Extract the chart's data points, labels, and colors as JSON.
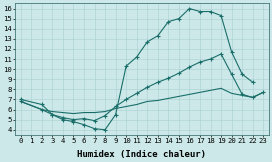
{
  "bg_color": "#cce8e8",
  "line_color": "#1a6e6a",
  "curve1_x": [
    0,
    2,
    3,
    4,
    5,
    6,
    7,
    8,
    9,
    10,
    11,
    12,
    13,
    14,
    15,
    16,
    17,
    18,
    19,
    20,
    21,
    22
  ],
  "curve1_y": [
    7,
    6.5,
    5.5,
    5.0,
    4.8,
    4.5,
    4.1,
    4.0,
    5.5,
    10.3,
    11.2,
    12.7,
    13.3,
    14.7,
    15.0,
    16.0,
    15.7,
    15.7,
    15.3,
    11.7,
    9.5,
    8.7
  ],
  "curve2_x": [
    0,
    2,
    3,
    4,
    5,
    6,
    7,
    8,
    9,
    10,
    11,
    12,
    13,
    14,
    15,
    16,
    17,
    18,
    19,
    20,
    21,
    22,
    23
  ],
  "curve2_y": [
    6.8,
    6.0,
    5.5,
    5.2,
    5.0,
    5.1,
    4.9,
    5.4,
    6.3,
    7.0,
    7.6,
    8.2,
    8.7,
    9.1,
    9.6,
    10.2,
    10.7,
    11.0,
    11.5,
    9.5,
    7.5,
    7.2,
    7.7
  ],
  "curve3_x": [
    0,
    2,
    3,
    4,
    5,
    6,
    7,
    8,
    9,
    10,
    11,
    12,
    13,
    14,
    15,
    16,
    17,
    18,
    19,
    20,
    21,
    22,
    23
  ],
  "curve3_y": [
    6.8,
    6.0,
    5.8,
    5.7,
    5.6,
    5.7,
    5.7,
    5.8,
    6.1,
    6.3,
    6.5,
    6.8,
    6.9,
    7.1,
    7.3,
    7.5,
    7.7,
    7.9,
    8.1,
    7.6,
    7.4,
    7.2,
    7.7
  ],
  "xlabel": "Humidex (Indice chaleur)",
  "xlim": [
    -0.5,
    23.5
  ],
  "ylim": [
    3.5,
    16.5
  ],
  "xticks": [
    0,
    1,
    2,
    3,
    4,
    5,
    6,
    7,
    8,
    9,
    10,
    11,
    12,
    13,
    14,
    15,
    16,
    17,
    18,
    19,
    20,
    21,
    22,
    23
  ],
  "yticks": [
    4,
    5,
    6,
    7,
    8,
    9,
    10,
    11,
    12,
    13,
    14,
    15,
    16
  ],
  "grid_color": "#aacfcf",
  "tick_labelsize": 5.2,
  "xlabel_fontsize": 6.5
}
